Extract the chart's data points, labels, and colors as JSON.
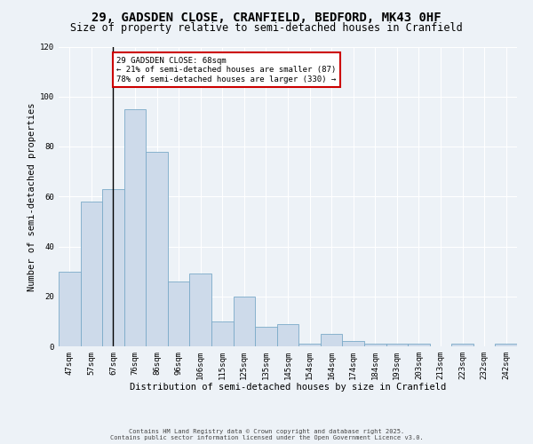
{
  "title": "29, GADSDEN CLOSE, CRANFIELD, BEDFORD, MK43 0HF",
  "subtitle": "Size of property relative to semi-detached houses in Cranfield",
  "xlabel": "Distribution of semi-detached houses by size in Cranfield",
  "ylabel": "Number of semi-detached properties",
  "categories": [
    "47sqm",
    "57sqm",
    "67sqm",
    "76sqm",
    "86sqm",
    "96sqm",
    "106sqm",
    "115sqm",
    "125sqm",
    "135sqm",
    "145sqm",
    "154sqm",
    "164sqm",
    "174sqm",
    "184sqm",
    "193sqm",
    "203sqm",
    "213sqm",
    "223sqm",
    "232sqm",
    "242sqm"
  ],
  "values": [
    30,
    58,
    63,
    95,
    78,
    26,
    29,
    10,
    20,
    8,
    9,
    1,
    5,
    2,
    1,
    1,
    1,
    0,
    1,
    0,
    1
  ],
  "bar_color": "#cddaea",
  "bar_edge_color": "#7aaac8",
  "marker_label": "29 GADSDEN CLOSE: 68sqm",
  "smaller_pct": "21%",
  "smaller_count": 87,
  "larger_pct": "78%",
  "larger_count": 330,
  "annotation_box_color": "#ffffff",
  "annotation_box_edge_color": "#cc0000",
  "ylim": [
    0,
    120
  ],
  "yticks": [
    0,
    20,
    40,
    60,
    80,
    100,
    120
  ],
  "footer1": "Contains HM Land Registry data © Crown copyright and database right 2025.",
  "footer2": "Contains public sector information licensed under the Open Government Licence v3.0.",
  "bg_color": "#edf2f7",
  "plot_bg_color": "#edf2f7",
  "grid_color": "#ffffff",
  "title_fontsize": 10,
  "subtitle_fontsize": 8.5,
  "axis_label_fontsize": 7.5,
  "tick_fontsize": 6.5,
  "footer_fontsize": 5,
  "annotation_fontsize": 6.5
}
